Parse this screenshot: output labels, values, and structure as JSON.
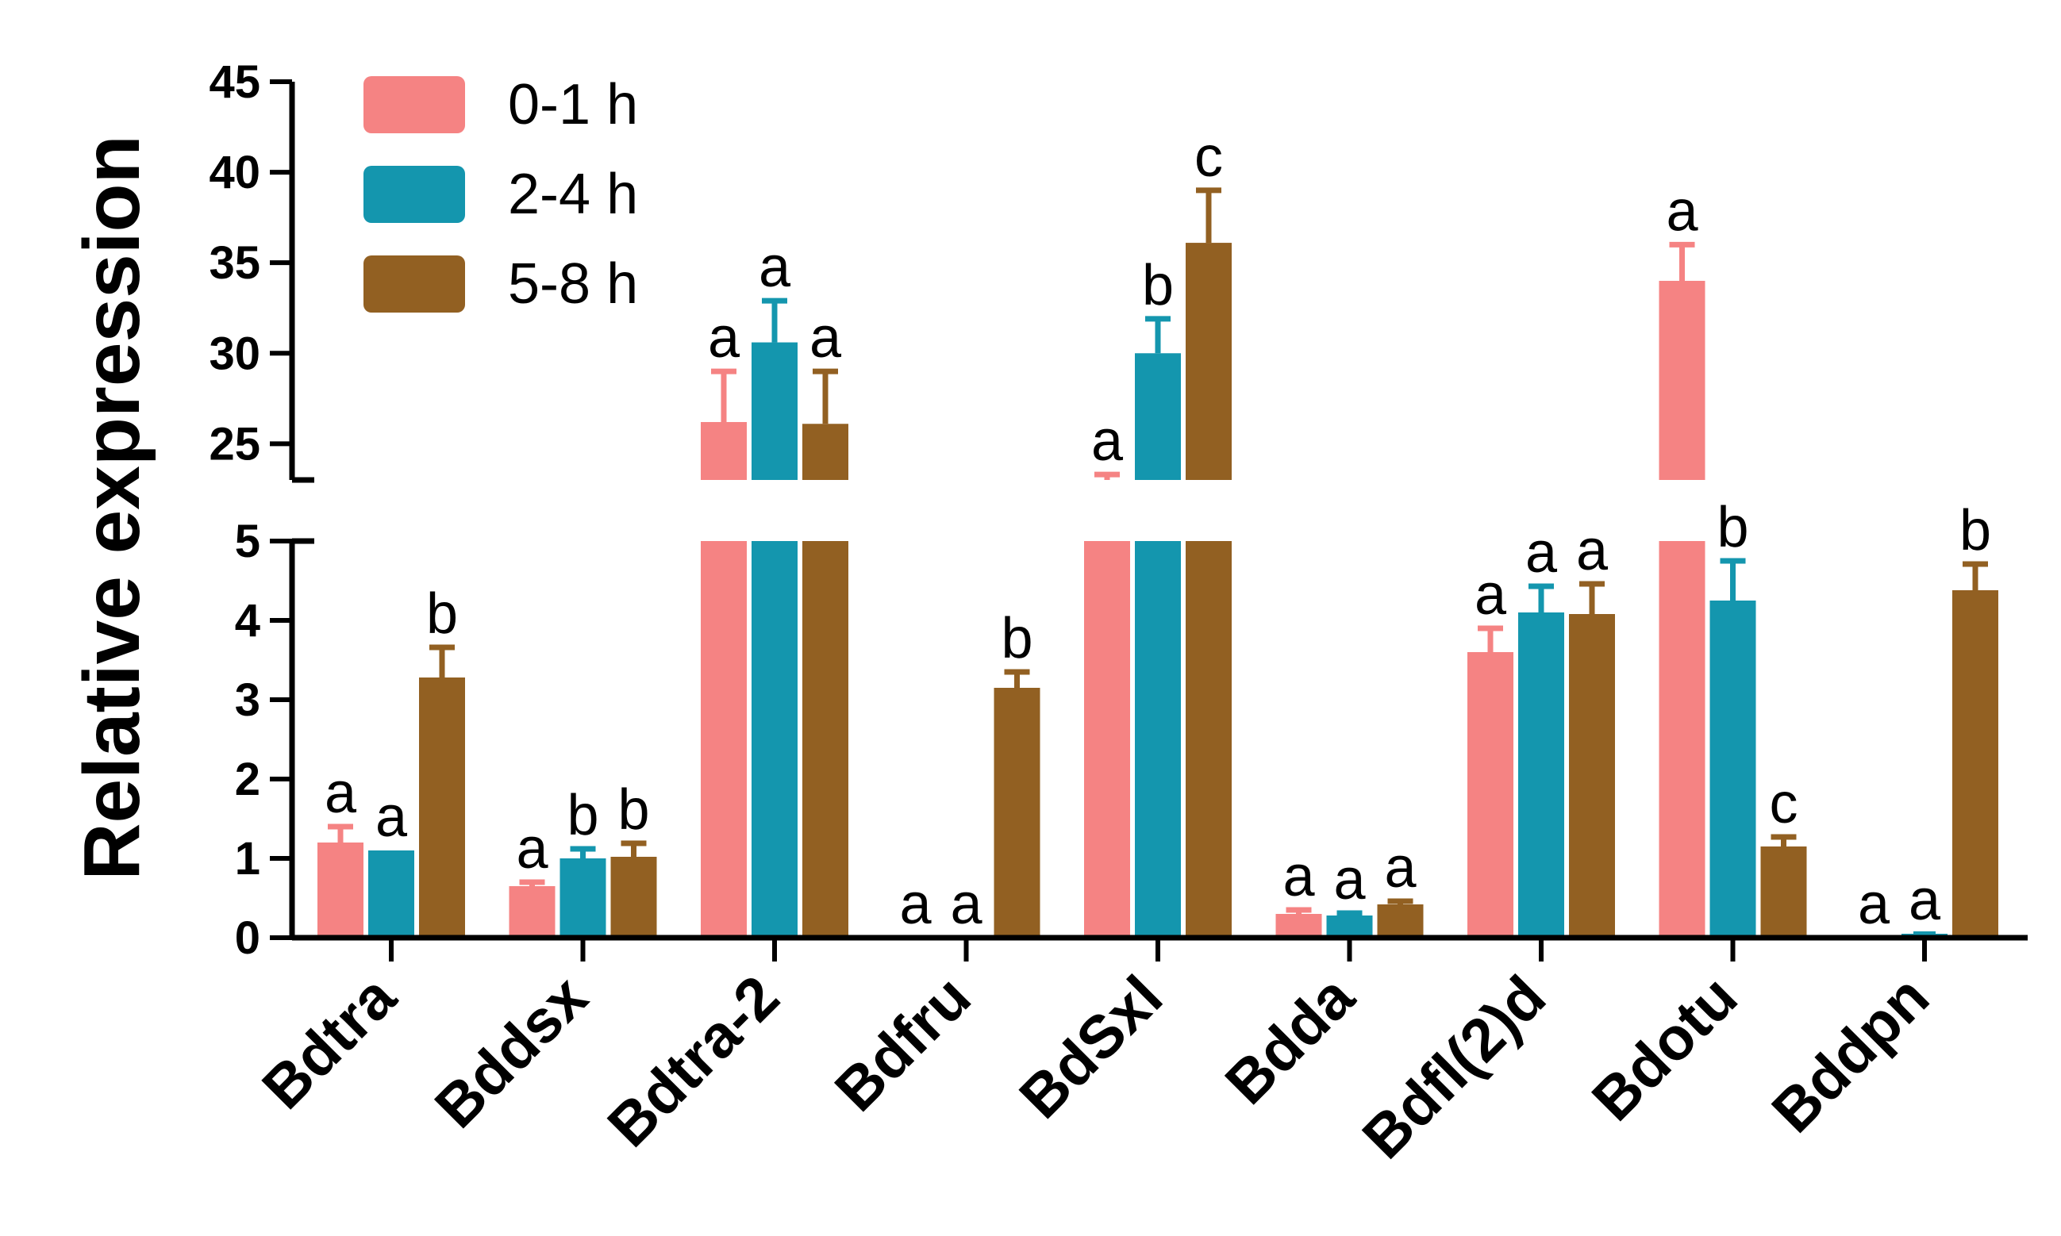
{
  "chart_data": {
    "type": "bar",
    "ylabel": "Relative expression",
    "xlabel": "",
    "title": "",
    "y_axis_broken": true,
    "ylim_lower": [
      0,
      5
    ],
    "ylim_upper": [
      23,
      45
    ],
    "yticks_lower": [
      0,
      1,
      2,
      3,
      4,
      5
    ],
    "yticks_upper": [
      25,
      30,
      35,
      40,
      45
    ],
    "legend_position": "top-left",
    "categories": [
      "Bdtra",
      "Bddsx",
      "Bdtra-2",
      "Bdfru",
      "BdSxl",
      "Bdda",
      "Bdfl(2)d",
      "Bdotu",
      "Bddpn"
    ],
    "series": [
      {
        "name": "0-1 h",
        "color": "#f58383",
        "values": [
          1.2,
          0.65,
          26.2,
          0.0,
          23.0,
          0.3,
          3.6,
          34.0,
          0.0
        ],
        "errors": [
          0.2,
          0.05,
          2.8,
          0.0,
          0.3,
          0.05,
          0.3,
          2.0,
          0.0
        ],
        "labels": [
          "a",
          "a",
          "a",
          "a",
          "a",
          "a",
          "a",
          "a",
          "a"
        ]
      },
      {
        "name": "2-4 h",
        "color": "#1496ae",
        "values": [
          1.1,
          1.0,
          30.6,
          0.0,
          30.0,
          0.28,
          4.1,
          4.25,
          0.05
        ],
        "errors": [
          0.0,
          0.12,
          2.3,
          0.0,
          1.9,
          0.03,
          0.33,
          0.5,
          0.0
        ],
        "labels": [
          "a",
          "b",
          "a",
          "a",
          "b",
          "a",
          "a",
          "b",
          "a"
        ]
      },
      {
        "name": "5-8 h",
        "color": "#926022",
        "values": [
          3.28,
          1.02,
          26.1,
          3.15,
          36.1,
          0.42,
          4.08,
          1.15,
          4.38
        ],
        "errors": [
          0.38,
          0.17,
          2.9,
          0.2,
          2.9,
          0.04,
          0.38,
          0.12,
          0.33
        ],
        "labels": [
          "b",
          "b",
          "a",
          "b",
          "c",
          "a",
          "a",
          "c",
          "b"
        ]
      }
    ]
  }
}
